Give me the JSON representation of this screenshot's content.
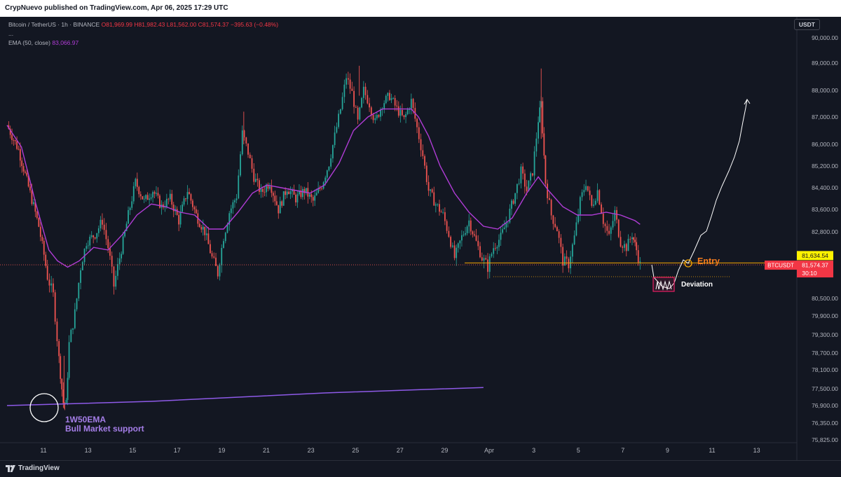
{
  "header": {
    "publisher_line": "CrypNuevo published on TradingView.com, Apr 06, 2025 17:29 UTC"
  },
  "legend": {
    "symbol": "Bitcoin / TetherUS · 1h · BINANCE",
    "open": "O81,969.99",
    "high": "H81,982.43",
    "low": "L81,562.00",
    "close": "C81,574.37",
    "change": "−395.63 (−0.48%)",
    "more": "...",
    "ema_label": "EMA (50, close)",
    "ema_value": "83,066.97"
  },
  "currency_button": "USDT",
  "colors": {
    "background": "#131722",
    "bull": "#26a69a",
    "bear": "#ef5350",
    "ema50": "#b03cd6",
    "weekly_ema": "#8e5ae8",
    "entry": "#f7a600",
    "annotation_text": "#a57ee8",
    "deviation_box": "#e91e63",
    "price_label": "#f23645"
  },
  "chart_data": {
    "type": "candlestick",
    "symbol": "BTCUSDT",
    "timeframe": "1h",
    "y_axis": {
      "ticks": [
        "90,000.00",
        "89,000.00",
        "88,000.00",
        "87,000.00",
        "86,000.00",
        "85,200.00",
        "84,400.00",
        "83,600.00",
        "82,800.00",
        "80,500.00",
        "79,900.00",
        "79,300.00",
        "78,700.00",
        "78,100.00",
        "77,500.00",
        "76,900.00",
        "76,350.00",
        "75,825.00"
      ],
      "range": [
        75600,
        90600
      ]
    },
    "x_axis": {
      "ticks": [
        "11",
        "13",
        "15",
        "17",
        "19",
        "21",
        "23",
        "25",
        "27",
        "29",
        "Apr",
        "3",
        "5",
        "7",
        "9",
        "11",
        "13"
      ]
    },
    "price_path": [
      [
        0,
        86700
      ],
      [
        0.8,
        85800
      ],
      [
        1.6,
        84200
      ],
      [
        2.2,
        83000
      ],
      [
        2.8,
        81200
      ],
      [
        3.2,
        80600
      ],
      [
        3.6,
        78500
      ],
      [
        3.9,
        77000
      ],
      [
        4.1,
        76950
      ],
      [
        4.3,
        79000
      ],
      [
        4.7,
        80000
      ],
      [
        5.1,
        81500
      ],
      [
        5.5,
        82400
      ],
      [
        6.1,
        82700
      ],
      [
        6.6,
        83200
      ],
      [
        7.0,
        82200
      ],
      [
        7.4,
        80900
      ],
      [
        7.8,
        81800
      ],
      [
        8.4,
        83400
      ],
      [
        8.9,
        84600
      ],
      [
        9.5,
        83900
      ],
      [
        10.1,
        84300
      ],
      [
        10.7,
        83700
      ],
      [
        11.3,
        84000
      ],
      [
        11.9,
        83200
      ],
      [
        12.5,
        84300
      ],
      [
        13.1,
        83400
      ],
      [
        13.7,
        82800
      ],
      [
        14.2,
        81800
      ],
      [
        14.6,
        81300
      ],
      [
        15.0,
        82600
      ],
      [
        15.4,
        83500
      ],
      [
        15.9,
        84100
      ],
      [
        16.3,
        86400
      ],
      [
        16.7,
        85700
      ],
      [
        17.1,
        84800
      ],
      [
        17.6,
        84200
      ],
      [
        18.2,
        84600
      ],
      [
        18.8,
        83600
      ],
      [
        19.4,
        84400
      ],
      [
        20.0,
        84000
      ],
      [
        20.6,
        84300
      ],
      [
        21.2,
        83900
      ],
      [
        21.8,
        84500
      ],
      [
        22.3,
        85300
      ],
      [
        22.7,
        86300
      ],
      [
        23.1,
        87300
      ],
      [
        23.5,
        88500
      ],
      [
        23.9,
        87900
      ],
      [
        24.3,
        86800
      ],
      [
        24.7,
        88000
      ],
      [
        25.1,
        87500
      ],
      [
        25.5,
        86800
      ],
      [
        26.0,
        87500
      ],
      [
        26.5,
        87800
      ],
      [
        27.0,
        87300
      ],
      [
        27.5,
        86900
      ],
      [
        28.0,
        87600
      ],
      [
        28.4,
        86600
      ],
      [
        28.8,
        85600
      ],
      [
        29.2,
        84300
      ],
      [
        29.7,
        83800
      ],
      [
        30.2,
        83400
      ],
      [
        30.6,
        82700
      ],
      [
        31.0,
        81800
      ],
      [
        31.5,
        82600
      ],
      [
        32.0,
        83200
      ],
      [
        32.5,
        82400
      ],
      [
        32.9,
        81800
      ],
      [
        33.3,
        81500
      ],
      [
        33.7,
        82200
      ],
      [
        34.2,
        82600
      ],
      [
        34.7,
        83300
      ],
      [
        35.2,
        84200
      ],
      [
        35.6,
        85000
      ],
      [
        36.0,
        84300
      ],
      [
        36.4,
        85000
      ],
      [
        36.8,
        86900
      ],
      [
        37.0,
        87500
      ],
      [
        37.3,
        84600
      ],
      [
        37.7,
        83400
      ],
      [
        38.1,
        82900
      ],
      [
        38.5,
        81700
      ],
      [
        38.9,
        81600
      ],
      [
        39.3,
        82600
      ],
      [
        39.7,
        83900
      ],
      [
        40.1,
        84600
      ],
      [
        40.5,
        83700
      ],
      [
        40.9,
        84300
      ],
      [
        41.3,
        83200
      ],
      [
        41.7,
        82600
      ],
      [
        42.1,
        83500
      ],
      [
        42.5,
        82400
      ],
      [
        42.9,
        82200
      ],
      [
        43.3,
        82700
      ],
      [
        43.6,
        82100
      ],
      [
        43.85,
        81570
      ]
    ],
    "ema50_path": [
      [
        0,
        86700
      ],
      [
        1.0,
        85900
      ],
      [
        2.0,
        83800
      ],
      [
        2.9,
        82100
      ],
      [
        3.5,
        81700
      ],
      [
        4.2,
        81500
      ],
      [
        5.0,
        81700
      ],
      [
        6.0,
        82200
      ],
      [
        7.0,
        82100
      ],
      [
        8.0,
        82700
      ],
      [
        9.0,
        83400
      ],
      [
        10.0,
        83800
      ],
      [
        11.0,
        83700
      ],
      [
        12.0,
        83500
      ],
      [
        13.0,
        83400
      ],
      [
        14.0,
        82900
      ],
      [
        15.0,
        82900
      ],
      [
        16.0,
        83500
      ],
      [
        17.0,
        84200
      ],
      [
        18.0,
        84500
      ],
      [
        19.0,
        84400
      ],
      [
        20.0,
        84300
      ],
      [
        21.0,
        84200
      ],
      [
        22.0,
        84500
      ],
      [
        23.0,
        85300
      ],
      [
        24.0,
        86500
      ],
      [
        25.0,
        87000
      ],
      [
        26.0,
        87300
      ],
      [
        27.0,
        87300
      ],
      [
        28.0,
        87300
      ],
      [
        28.5,
        87000
      ],
      [
        29.2,
        86300
      ],
      [
        30.0,
        85200
      ],
      [
        31.0,
        84200
      ],
      [
        32.0,
        83500
      ],
      [
        33.0,
        83000
      ],
      [
        34.0,
        82900
      ],
      [
        35.0,
        83300
      ],
      [
        36.0,
        84200
      ],
      [
        36.8,
        84800
      ],
      [
        37.5,
        84300
      ],
      [
        38.5,
        83700
      ],
      [
        39.5,
        83400
      ],
      [
        40.5,
        83400
      ],
      [
        41.5,
        83500
      ],
      [
        42.5,
        83400
      ],
      [
        43.5,
        83200
      ],
      [
        43.85,
        83067
      ]
    ],
    "weekly_ema_path": [
      [
        0,
        76900
      ],
      [
        10,
        77050
      ],
      [
        22,
        77350
      ],
      [
        33,
        77540
      ]
    ],
    "current_price": 81574.37,
    "entry_level": 81634.54
  },
  "annotations": {
    "entry_label": "Entry",
    "deviation_label": "Deviation",
    "weekly_ema_title": "1W50EMA",
    "weekly_ema_subtitle": "Bull Market support",
    "entry_price_tag": "81,634.54",
    "symbol_tag": "BTCUSDT",
    "current_price_tag": "81,574.37",
    "countdown_tag": "30:10"
  },
  "footer": {
    "brand": "TradingView"
  }
}
